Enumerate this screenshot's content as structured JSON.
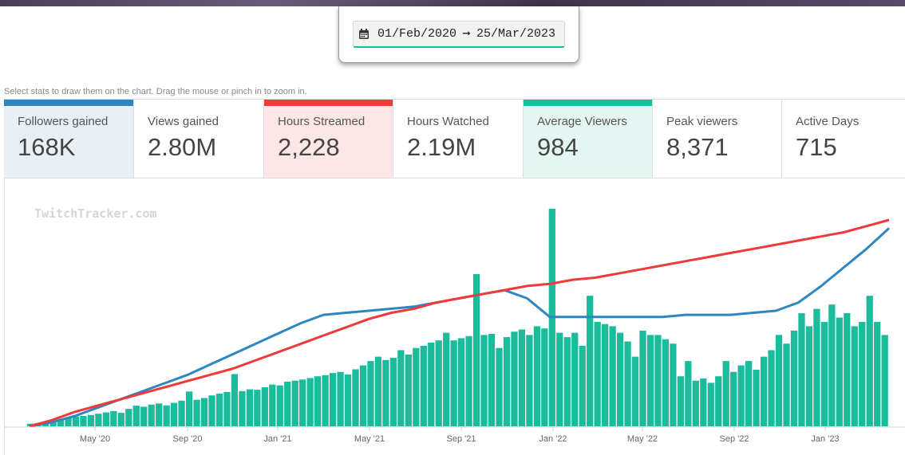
{
  "date_range": {
    "start": "01/Feb/2020",
    "arrow": "➞",
    "end": "25/Mar/2023"
  },
  "hint": "Select stats to draw them on the chart. Drag the mouse or pinch in to zoom in.",
  "stats": [
    {
      "label": "Followers gained",
      "value": "168K",
      "active": true,
      "color": "#2e86c1",
      "bg": "#e8f0f6"
    },
    {
      "label": "Views gained",
      "value": "2.80M",
      "active": false
    },
    {
      "label": "Hours Streamed",
      "value": "2,228",
      "active": true,
      "color": "#ee3a3a",
      "bg": "#fde6e6"
    },
    {
      "label": "Hours Watched",
      "value": "2.19M",
      "active": false
    },
    {
      "label": "Average Viewers",
      "value": "984",
      "active": true,
      "color": "#1abc9c",
      "bg": "#e3f6f1"
    },
    {
      "label": "Peak viewers",
      "value": "8,371",
      "active": false
    },
    {
      "label": "Active Days",
      "value": "715",
      "active": false
    }
  ],
  "chart_data": {
    "type": "bar",
    "watermark": "TwitchTracker.com",
    "x_ticks": [
      "May '20",
      "Sep '20",
      "Jan '21",
      "May '21",
      "Sep '21",
      "Jan '22",
      "May '22",
      "Sep '22",
      "Jan '23"
    ],
    "x_range": [
      "2020-02-01",
      "2023-03-25"
    ],
    "y_range_relative": [
      0,
      1
    ],
    "series": [
      {
        "name": "Average Viewers",
        "kind": "bar",
        "color": "#1abc9c",
        "values": [
          12,
          15,
          18,
          22,
          30,
          38,
          45,
          48,
          52,
          58,
          64,
          70,
          62,
          80,
          95,
          90,
          100,
          105,
          96,
          108,
          118,
          160,
          122,
          130,
          142,
          150,
          158,
          240,
          162,
          170,
          168,
          180,
          192,
          188,
          205,
          210,
          215,
          222,
          230,
          235,
          245,
          250,
          238,
          262,
          280,
          300,
          320,
          305,
          315,
          350,
          330,
          360,
          370,
          385,
          395,
          430,
          395,
          405,
          415,
          700,
          420,
          425,
          360,
          410,
          435,
          445,
          420,
          460,
          450,
          1000,
          430,
          410,
          430,
          370,
          600,
          480,
          470,
          460,
          430,
          390,
          320,
          440,
          420,
          420,
          400,
          380,
          230,
          300,
          210,
          220,
          200,
          230,
          300,
          250,
          280,
          300,
          260,
          320,
          350,
          420,
          380,
          440,
          520,
          460,
          540,
          480,
          560,
          500,
          520,
          460,
          480,
          600,
          480,
          420
        ]
      },
      {
        "name": "Hours Streamed (cumulative)",
        "kind": "line",
        "color": "#ee3a3a",
        "values": [
          0,
          0.03,
          0.07,
          0.1,
          0.13,
          0.16,
          0.19,
          0.22,
          0.25,
          0.28,
          0.32,
          0.36,
          0.4,
          0.44,
          0.48,
          0.52,
          0.55,
          0.57,
          0.6,
          0.62,
          0.64,
          0.66,
          0.68,
          0.69,
          0.71,
          0.72,
          0.74,
          0.76,
          0.78,
          0.8,
          0.82,
          0.84,
          0.86,
          0.88,
          0.9,
          0.92,
          0.94,
          0.97,
          1.0
        ]
      },
      {
        "name": "Followers gained (cumulative)",
        "kind": "line",
        "color": "#2e86c1",
        "values": [
          0,
          0.02,
          0.05,
          0.09,
          0.13,
          0.17,
          0.21,
          0.25,
          0.3,
          0.35,
          0.4,
          0.45,
          0.5,
          0.54,
          0.55,
          0.56,
          0.57,
          0.58,
          0.6,
          0.62,
          0.64,
          0.66,
          0.62,
          0.53,
          0.53,
          0.53,
          0.53,
          0.53,
          0.53,
          0.54,
          0.54,
          0.54,
          0.55,
          0.56,
          0.6,
          0.68,
          0.77,
          0.86,
          0.96
        ]
      }
    ]
  }
}
